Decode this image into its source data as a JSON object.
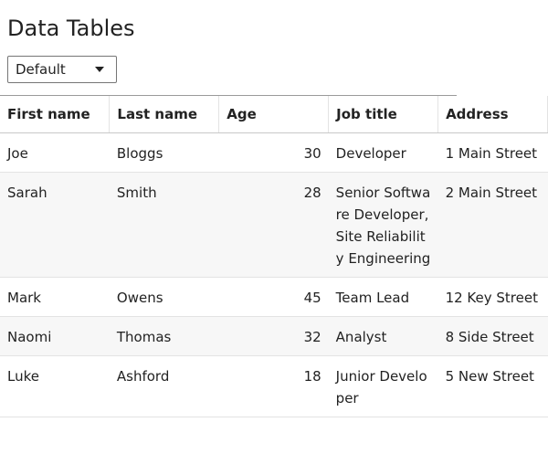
{
  "page": {
    "title": "Data Tables"
  },
  "filter": {
    "selected": "Default"
  },
  "table": {
    "columns": [
      {
        "key": "first",
        "label": "First name"
      },
      {
        "key": "last",
        "label": "Last name"
      },
      {
        "key": "age",
        "label": "Age"
      },
      {
        "key": "job",
        "label": "Job title"
      },
      {
        "key": "address",
        "label": "Address"
      }
    ],
    "rows": [
      {
        "first": "Joe",
        "last": "Bloggs",
        "age": "30",
        "job": "Developer",
        "address": "1 Main Street"
      },
      {
        "first": "Sarah",
        "last": "Smith",
        "age": "28",
        "job": "Senior Software Developer, Site Reliability Engineering",
        "address": "2 Main Street"
      },
      {
        "first": "Mark",
        "last": "Owens",
        "age": "45",
        "job": "Team Lead",
        "address": "12 Key Street"
      },
      {
        "first": "Naomi",
        "last": "Thomas",
        "age": "32",
        "job": "Analyst",
        "address": "8 Side Street"
      },
      {
        "first": "Luke",
        "last": "Ashford",
        "age": "18",
        "job": "Junior Developer",
        "address": "5 New Street"
      }
    ]
  },
  "colors": {
    "row_alt": "#f7f7f7",
    "header_rule": "#9a9a9a",
    "text": "#222222"
  },
  "icons": {
    "dropdown": "caret-down-icon"
  }
}
